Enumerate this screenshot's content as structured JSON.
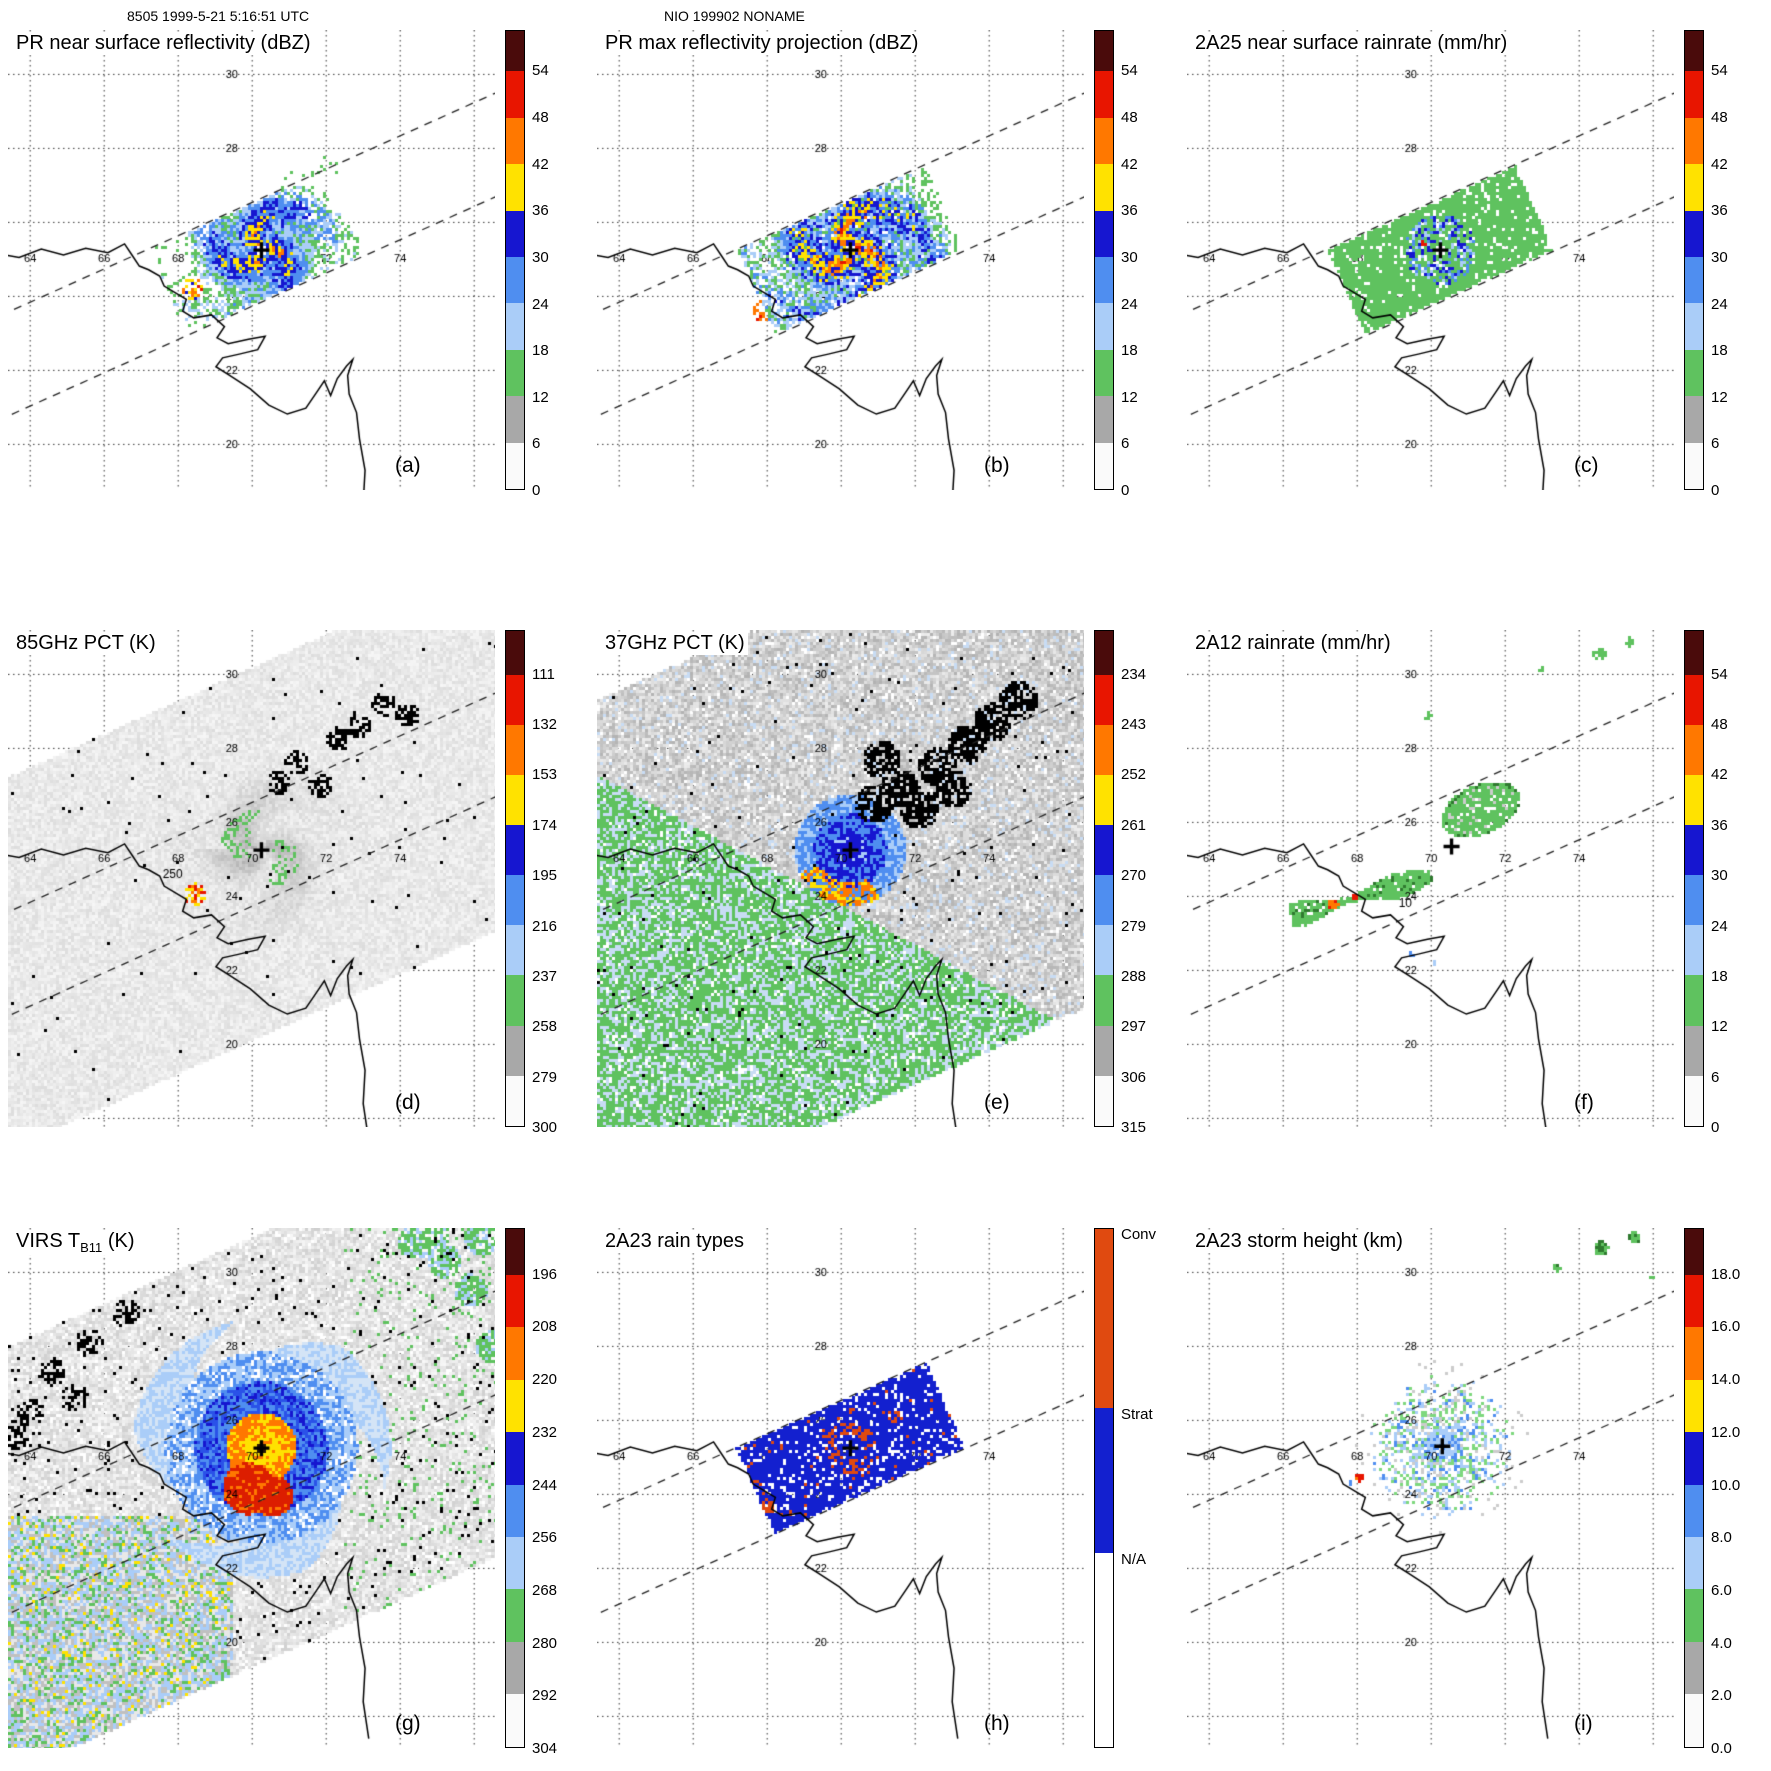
{
  "header": {
    "left": "8505 1999-5-21 5:16:51 UTC",
    "center": "NIO 199902 NONAME"
  },
  "grid": {
    "lon_labels": [
      "64",
      "66",
      "68",
      "70",
      "72",
      "74"
    ],
    "lat_labels": [
      "30",
      "28",
      "26",
      "24",
      "22",
      "20"
    ]
  },
  "palette": {
    "maroon": "#4a0b0b",
    "red": "#e81500",
    "orange": "#ff7800",
    "yellow": "#ffe200",
    "dark_blue": "#1616d0",
    "medium_blue": "#4f8ef0",
    "pale_blue": "#aacdf8",
    "green": "#5fc25f",
    "gray": "#a8a8a8",
    "light_gray": "#d9d9d9",
    "conv_red": "#e04a10",
    "strat_blue": "#1320cf"
  },
  "colorbars": {
    "dbz": {
      "ticks": [
        "54",
        "48",
        "42",
        "36",
        "30",
        "24",
        "18",
        "12",
        "6",
        "0"
      ]
    },
    "pct85": {
      "ticks": [
        "111",
        "132",
        "153",
        "174",
        "195",
        "216",
        "237",
        "258",
        "279",
        "300"
      ]
    },
    "pct37": {
      "ticks": [
        "234",
        "243",
        "252",
        "261",
        "270",
        "279",
        "288",
        "297",
        "306",
        "315"
      ]
    },
    "virs": {
      "ticks": [
        "196",
        "208",
        "220",
        "232",
        "244",
        "256",
        "268",
        "280",
        "292",
        "304"
      ]
    },
    "height": {
      "ticks": [
        "18.0",
        "16.0",
        "14.0",
        "12.0",
        "10.0",
        "8.0",
        "6.0",
        "4.0",
        "2.0",
        "0.0"
      ]
    },
    "raintype": {
      "labels": [
        "Conv",
        "Strat",
        "N/A"
      ]
    }
  },
  "panels": [
    {
      "id": "a",
      "title": "PR near surface reflectivity (dBZ)",
      "letter": "(a)",
      "colorbar": "dbz"
    },
    {
      "id": "b",
      "title": "PR max reflectivity projection (dBZ)",
      "letter": "(b)",
      "colorbar": "dbz"
    },
    {
      "id": "c",
      "title": "2A25 near surface rainrate (mm/hr)",
      "letter": "(c)",
      "colorbar": "dbz"
    },
    {
      "id": "d",
      "title": "85GHz PCT (K)",
      "letter": "(d)",
      "colorbar": "pct85",
      "annotation": "250"
    },
    {
      "id": "e",
      "title": "37GHz PCT (K)",
      "letter": "(e)",
      "colorbar": "pct37"
    },
    {
      "id": "f",
      "title": "2A12 rainrate (mm/hr)",
      "letter": "(f)",
      "colorbar": "dbz",
      "annotation": "10"
    },
    {
      "id": "g",
      "title_pre": "VIRS T",
      "title_sub": "B11",
      "title_post": " (K)",
      "letter": "(g)",
      "colorbar": "virs"
    },
    {
      "id": "h",
      "title": "2A23 rain types",
      "letter": "(h)",
      "colorbar": "raintype"
    },
    {
      "id": "i",
      "title": "2A23 storm height (km)",
      "letter": "(i)",
      "colorbar": "height"
    }
  ],
  "chart_data": {
    "type": "heatmap",
    "subtype": "multi-panel satellite overpass maps of a tropical cyclone",
    "overpass": {
      "orbit": "8505",
      "datetime_utc": "1999-5-21 5:16:51",
      "storm_id": "NIO 199902",
      "storm_name": "NONAME"
    },
    "map_extent": {
      "lon_deg": [
        63.4,
        76.6
      ],
      "lat_deg": [
        18.6,
        31.2
      ]
    },
    "storm_center": {
      "lon_deg": 70.25,
      "lat_deg": 25.25
    },
    "grid_lon_deg": [
      64,
      66,
      68,
      70,
      72,
      74
    ],
    "grid_lat_deg": [
      20,
      22,
      24,
      26,
      28,
      30
    ],
    "panels": [
      {
        "label": "(a)",
        "title": "PR near surface reflectivity (dBZ)",
        "units": "dBZ",
        "colorbar_ticks": [
          54,
          48,
          42,
          36,
          30,
          24,
          18,
          12,
          6,
          0
        ]
      },
      {
        "label": "(b)",
        "title": "PR max reflectivity projection (dBZ)",
        "units": "dBZ",
        "colorbar_ticks": [
          54,
          48,
          42,
          36,
          30,
          24,
          18,
          12,
          6,
          0
        ]
      },
      {
        "label": "(c)",
        "title": "2A25 near surface rainrate (mm/hr)",
        "units": "mm/hr",
        "colorbar_ticks": [
          54,
          48,
          42,
          36,
          30,
          24,
          18,
          12,
          6,
          0
        ]
      },
      {
        "label": "(d)",
        "title": "85GHz PCT (K)",
        "units": "K",
        "colorbar_ticks": [
          111,
          132,
          153,
          174,
          195,
          216,
          237,
          258,
          279,
          300
        ],
        "contour_label": "250"
      },
      {
        "label": "(e)",
        "title": "37GHz PCT (K)",
        "units": "K",
        "colorbar_ticks": [
          234,
          243,
          252,
          261,
          270,
          279,
          288,
          297,
          306,
          315
        ]
      },
      {
        "label": "(f)",
        "title": "2A12 rainrate (mm/hr)",
        "units": "mm/hr",
        "colorbar_ticks": [
          54,
          48,
          42,
          36,
          30,
          24,
          18,
          12,
          6,
          0
        ],
        "contour_label": "10"
      },
      {
        "label": "(g)",
        "title": "VIRS TB11 (K)",
        "units": "K",
        "colorbar_ticks": [
          196,
          208,
          220,
          232,
          244,
          256,
          268,
          280,
          292,
          304
        ]
      },
      {
        "label": "(h)",
        "title": "2A23 rain types",
        "categories": [
          "Conv",
          "Strat",
          "N/A"
        ]
      },
      {
        "label": "(i)",
        "title": "2A23 storm height (km)",
        "units": "km",
        "colorbar_ticks": [
          18,
          16,
          14,
          12,
          10,
          8,
          6,
          4,
          2,
          0
        ]
      }
    ]
  }
}
